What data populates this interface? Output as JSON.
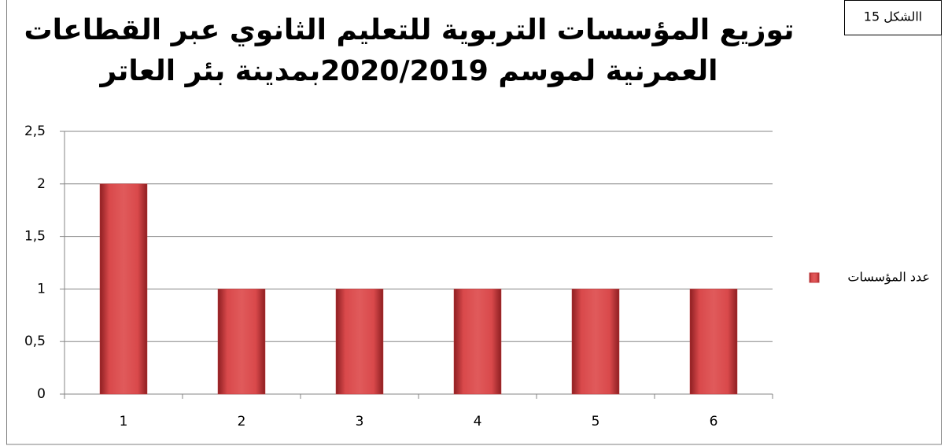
{
  "chart_data": {
    "type": "bar",
    "title": [
      "توزيع المؤسسات التربوية للتعليم الثانوي عبر القطاعات",
      "العمرنية لموسم 2020/2019بمدينة بئر العاتر"
    ],
    "annotation": "االشكل 15",
    "categories": [
      "1",
      "2",
      "3",
      "4",
      "5",
      "6"
    ],
    "series": [
      {
        "name": "عدد المؤسسات",
        "color": "#c0393b",
        "values": [
          2,
          1,
          1,
          1,
          1,
          1
        ]
      }
    ],
    "ylim": [
      0,
      2.5
    ],
    "yticks": [
      0,
      {
        "value": 0.5,
        "label": "0,5"
      },
      1,
      {
        "value": 1.5,
        "label": "1,5"
      },
      2,
      {
        "value": 2.5,
        "label": "2,5"
      }
    ],
    "grid": true,
    "legend": "right"
  }
}
